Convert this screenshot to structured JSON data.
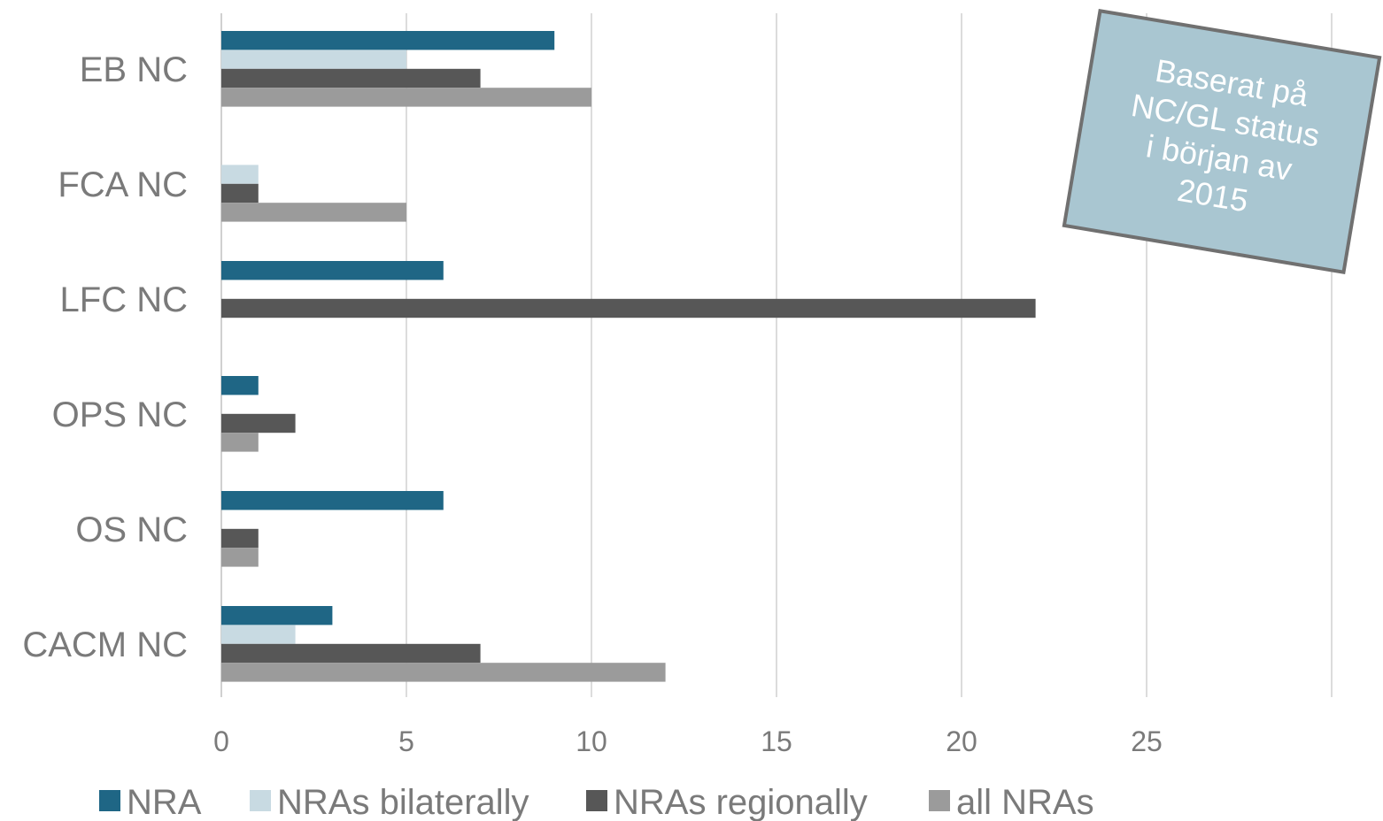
{
  "chart_data": {
    "type": "bar",
    "orientation": "horizontal",
    "categories": [
      "EB NC",
      "FCA NC",
      "LFC NC",
      "OPS NC",
      "OS NC",
      "CACM NC"
    ],
    "series": [
      {
        "name": "NRA",
        "color": "#1f6685",
        "values": [
          9,
          0,
          6,
          1,
          6,
          3
        ]
      },
      {
        "name": "NRAs bilaterally",
        "color": "#c8dae2",
        "values": [
          5,
          1,
          0,
          0,
          0,
          2
        ]
      },
      {
        "name": "NRAs regionally",
        "color": "#575757",
        "values": [
          7,
          1,
          22,
          2,
          1,
          7
        ]
      },
      {
        "name": "all NRAs",
        "color": "#9b9b9b",
        "values": [
          10,
          5,
          0,
          1,
          1,
          12
        ]
      }
    ],
    "x_ticks": [
      "0",
      "5",
      "10",
      "15",
      "20",
      "25"
    ],
    "xlim": [
      0,
      30
    ],
    "grid": true,
    "legend_position": "bottom",
    "annotation": {
      "lines": [
        "Baserat på",
        "NC/GL status",
        "i början av",
        "2015"
      ],
      "fill": "#a9c6d1",
      "border": "#707070"
    }
  }
}
